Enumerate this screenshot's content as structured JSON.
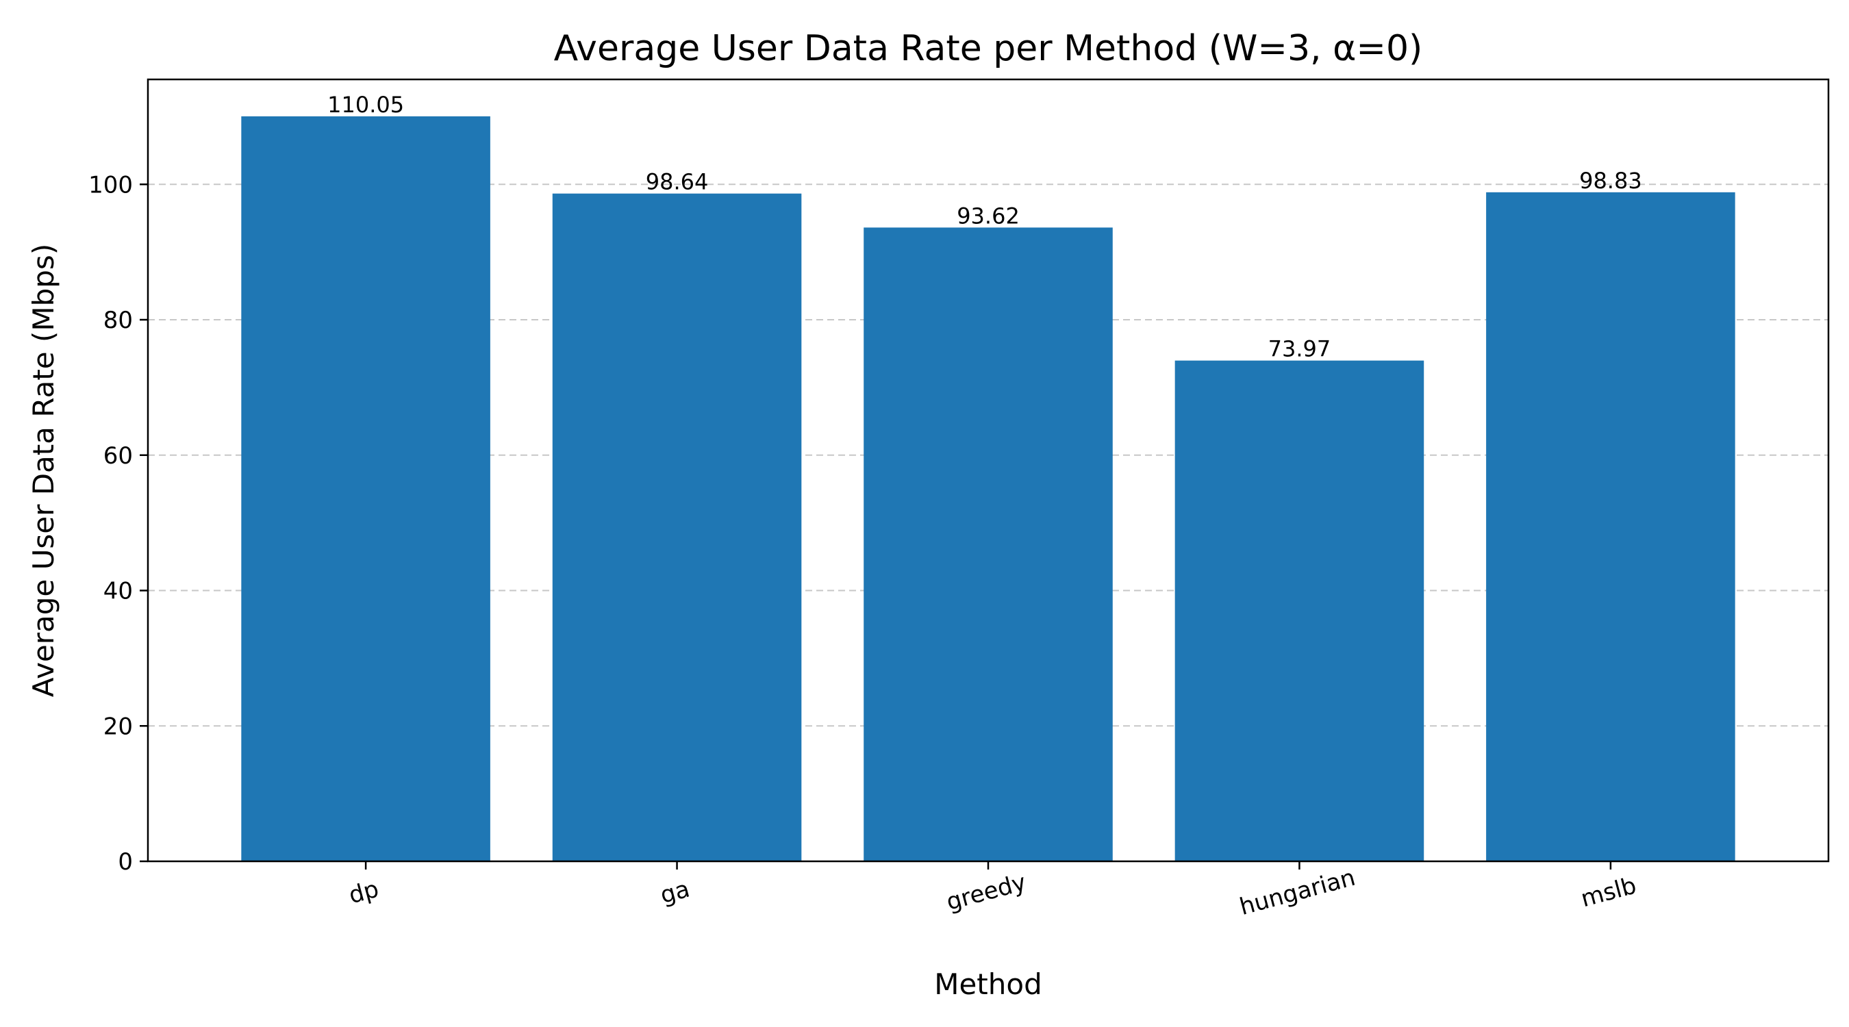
{
  "chart_data": {
    "type": "bar",
    "title": "Average User Data Rate per Method (W=3, α=0)",
    "xlabel": "Method",
    "ylabel": "Average User Data Rate (Mbps)",
    "categories": [
      "dp",
      "ga",
      "greedy",
      "hungarian",
      "mslb"
    ],
    "values": [
      110.05,
      98.64,
      93.62,
      73.97,
      98.83
    ],
    "value_labels": [
      "110.05",
      "98.64",
      "93.62",
      "73.97",
      "98.83"
    ],
    "ylim": [
      0,
      115.5
    ],
    "yticks": [
      0,
      20,
      40,
      60,
      80,
      100
    ],
    "ytick_labels": [
      "0",
      "20",
      "40",
      "60",
      "80",
      "100"
    ],
    "grid": "y-dashed",
    "bar_color": "#1f77b4"
  }
}
